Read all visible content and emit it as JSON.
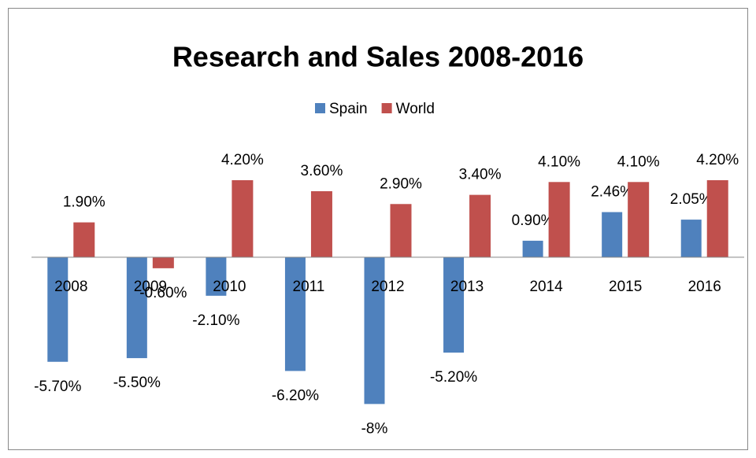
{
  "chart_data": {
    "type": "bar",
    "title": "Research and Sales 2008-2016",
    "categories": [
      "2008",
      "2009",
      "2010",
      "2011",
      "2012",
      "2013",
      "2014",
      "2015",
      "2016"
    ],
    "series": [
      {
        "name": "Spain",
        "color": "#4f81bd",
        "values": [
          -5.7,
          -5.5,
          -2.1,
          -6.2,
          -8,
          -5.2,
          0.9,
          2.46,
          2.05
        ],
        "value_labels": [
          "-5.70%",
          "-5.50%",
          "-2.10%",
          "-6.20%",
          "-8%",
          "-5.20%",
          "0.90%",
          "2.46%",
          "2.05%"
        ]
      },
      {
        "name": "World",
        "color": "#c0504d",
        "values": [
          1.9,
          -0.6,
          4.2,
          3.6,
          2.9,
          3.4,
          4.1,
          4.1,
          4.2
        ],
        "value_labels": [
          "1.90%",
          "-0.60%",
          "4.20%",
          "3.60%",
          "2.90%",
          "3.40%",
          "4.10%",
          "4.10%",
          "4.20%"
        ]
      }
    ],
    "ylim": [
      -10,
      6
    ],
    "legend": "top"
  }
}
